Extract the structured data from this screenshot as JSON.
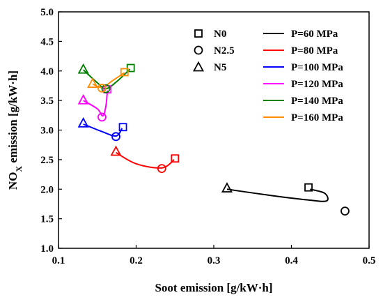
{
  "chart_data": {
    "type": "scatter",
    "title": "",
    "xlabel": "Soot emission [g/kW·h]",
    "ylabel_main": "NO",
    "ylabel_sub": "X",
    "ylabel_rest": " emission [g/kW·h]",
    "xlim": [
      0.1,
      0.5
    ],
    "ylim": [
      1.0,
      5.0
    ],
    "xticks": [
      "0.1",
      "0.2",
      "0.3",
      "0.4",
      "0.5"
    ],
    "yticks": [
      "1.0",
      "1.5",
      "2.0",
      "2.5",
      "3.0",
      "3.5",
      "4.0",
      "4.5",
      "5.0"
    ],
    "grid": false,
    "marker_legend": [
      {
        "label": "N0",
        "marker": "square"
      },
      {
        "label": "N2.5",
        "marker": "circle"
      },
      {
        "label": "N5",
        "marker": "triangle"
      }
    ],
    "series": [
      {
        "name": "P=60 MPa",
        "color": "#000000",
        "points": [
          {
            "fuel": "N5",
            "x": 0.317,
            "y": 2.02
          },
          {
            "fuel": "N0",
            "x": 0.422,
            "y": 2.03
          },
          {
            "fuel": "N2.5",
            "x": 0.469,
            "y": 1.63
          }
        ],
        "curve": [
          [
            0.317,
            2.0
          ],
          [
            0.37,
            1.9
          ],
          [
            0.42,
            1.82
          ],
          [
            0.445,
            1.8
          ],
          [
            0.443,
            1.93
          ],
          [
            0.424,
            2.0
          ]
        ]
      },
      {
        "name": "P=80 MPa",
        "color": "#ff0000",
        "points": [
          {
            "fuel": "N5",
            "x": 0.174,
            "y": 2.64
          },
          {
            "fuel": "N2.5",
            "x": 0.233,
            "y": 2.35
          },
          {
            "fuel": "N0",
            "x": 0.25,
            "y": 2.52
          }
        ],
        "curve": [
          [
            0.174,
            2.62
          ],
          [
            0.2,
            2.43
          ],
          [
            0.233,
            2.36
          ],
          [
            0.249,
            2.5
          ]
        ]
      },
      {
        "name": "P=100 MPa",
        "color": "#0000ff",
        "points": [
          {
            "fuel": "N5",
            "x": 0.132,
            "y": 3.12
          },
          {
            "fuel": "N2.5",
            "x": 0.174,
            "y": 2.89
          },
          {
            "fuel": "N0",
            "x": 0.183,
            "y": 3.05
          }
        ],
        "curve": [
          [
            0.132,
            3.1
          ],
          [
            0.155,
            2.98
          ],
          [
            0.174,
            2.9
          ],
          [
            0.182,
            3.03
          ]
        ]
      },
      {
        "name": "P=120 MPa",
        "color": "#ff00ff",
        "points": [
          {
            "fuel": "N5",
            "x": 0.132,
            "y": 3.51
          },
          {
            "fuel": "N2.5",
            "x": 0.156,
            "y": 3.22
          },
          {
            "fuel": "N0",
            "x": 0.163,
            "y": 3.69
          }
        ],
        "curve": [
          [
            0.132,
            3.5
          ],
          [
            0.15,
            3.36
          ],
          [
            0.157,
            3.24
          ],
          [
            0.161,
            3.4
          ],
          [
            0.163,
            3.67
          ]
        ]
      },
      {
        "name": "P=140 MPa",
        "color": "#008000",
        "points": [
          {
            "fuel": "N5",
            "x": 0.132,
            "y": 4.03
          },
          {
            "fuel": "N2.5",
            "x": 0.161,
            "y": 3.7
          },
          {
            "fuel": "N0",
            "x": 0.193,
            "y": 4.05
          }
        ],
        "curve": [
          [
            0.132,
            4.02
          ],
          [
            0.15,
            3.8
          ],
          [
            0.161,
            3.7
          ],
          [
            0.175,
            3.82
          ],
          [
            0.192,
            4.03
          ]
        ]
      },
      {
        "name": "P=160 MPa",
        "color": "#ff8c00",
        "points": [
          {
            "fuel": "N5",
            "x": 0.144,
            "y": 3.79
          },
          {
            "fuel": "N2.5",
            "x": 0.156,
            "y": 3.71
          },
          {
            "fuel": "N0",
            "x": 0.185,
            "y": 3.98
          }
        ],
        "curve": [
          [
            0.144,
            3.78
          ],
          [
            0.156,
            3.72
          ],
          [
            0.17,
            3.84
          ],
          [
            0.185,
            3.97
          ]
        ]
      }
    ]
  }
}
